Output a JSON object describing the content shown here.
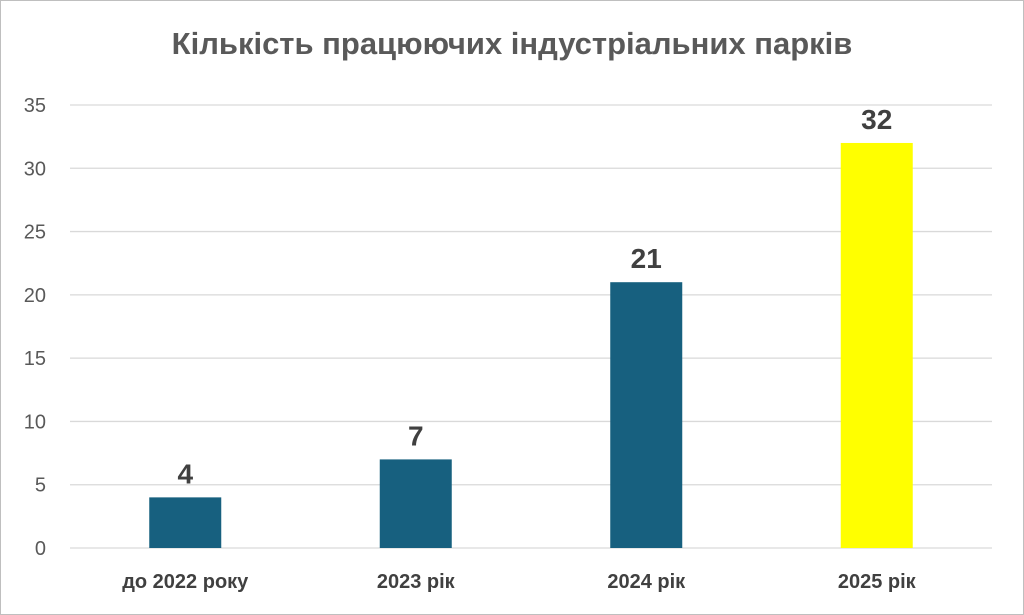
{
  "chart_data": {
    "type": "bar",
    "title": "Кількість працюючих індустріальних парків",
    "xlabel": "",
    "ylabel": "",
    "categories": [
      "до 2022 року",
      "2023 рік",
      "2024 рік",
      "2025 рік"
    ],
    "values": [
      4,
      7,
      21,
      32
    ],
    "data_labels": [
      "4",
      "7",
      "21",
      "32"
    ],
    "ylim": [
      0,
      35
    ],
    "yticks": [
      "0",
      "5",
      "10",
      "15",
      "20",
      "25",
      "30",
      "35"
    ],
    "grid": true,
    "legend": "none",
    "colors": {
      "bar_default": "#17607f",
      "bar_highlight": "#ffff00",
      "highlight_index": 3,
      "grid": "#d9d9d9",
      "text": "#404040"
    }
  }
}
